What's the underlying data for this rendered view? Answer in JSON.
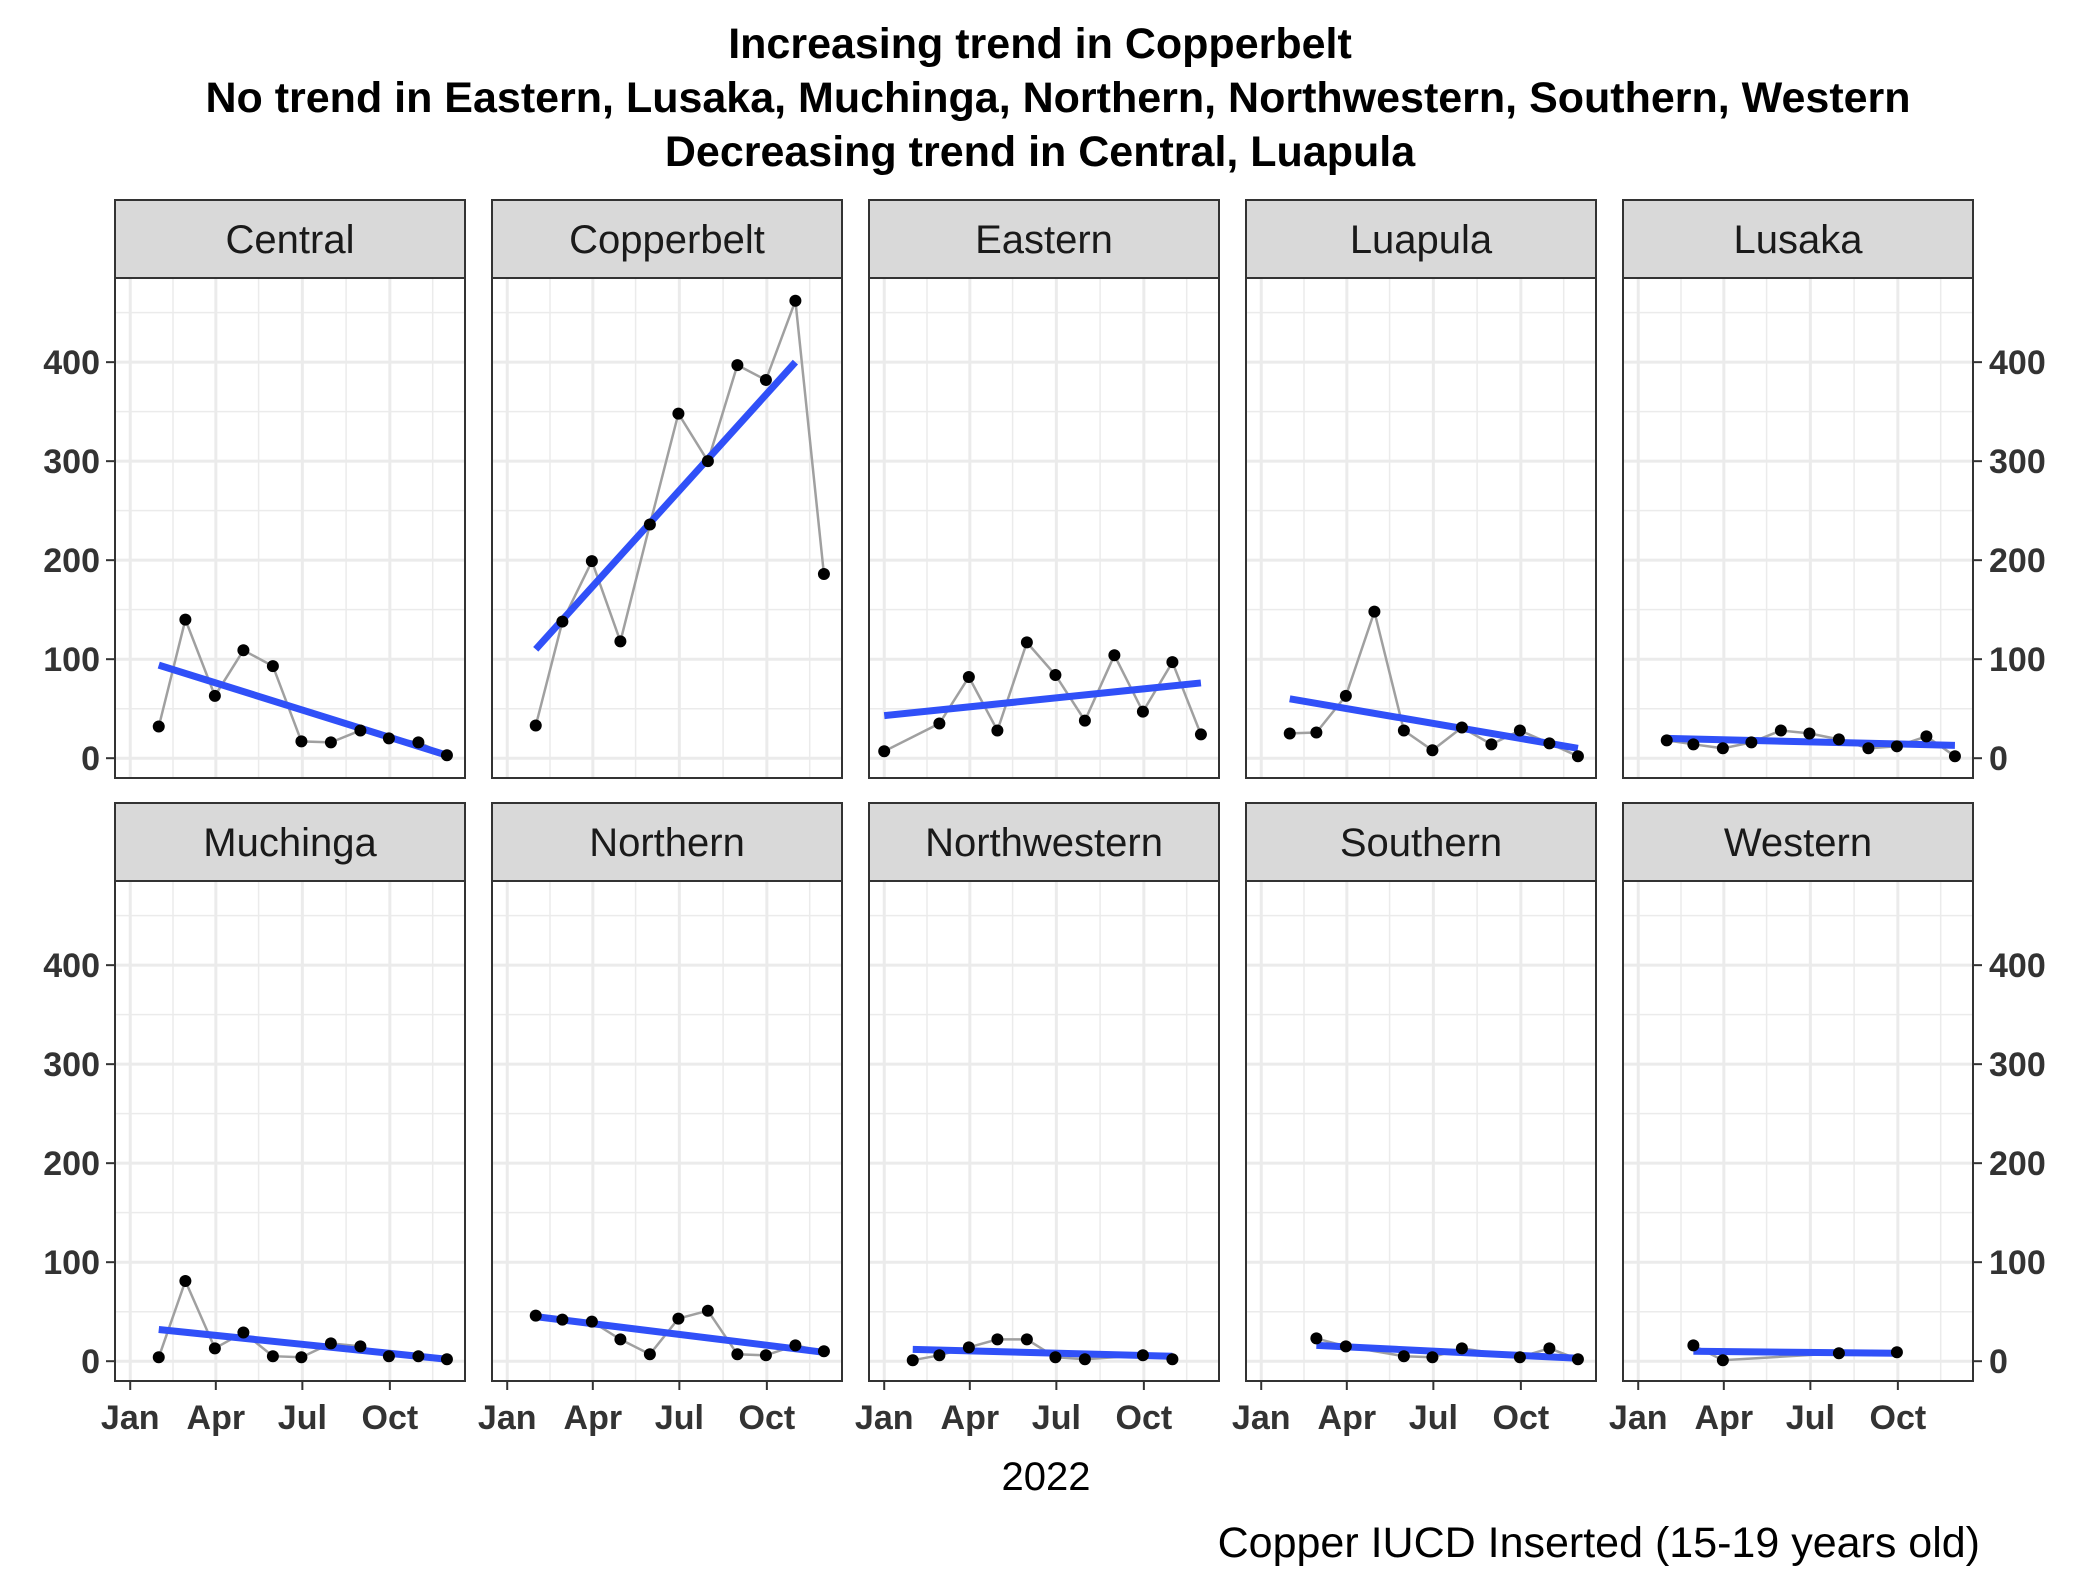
{
  "chart_data": {
    "type": "line",
    "title_lines": [
      "Increasing trend in Copperbelt",
      "No trend in Eastern, Lusaka, Muchinga, Northern, Northwestern, Southern, Western",
      "Decreasing trend in Central, Luapula"
    ],
    "xlabel": "2022",
    "ylabel": "",
    "caption": "Copper IUCD Inserted (15-19 years old)",
    "x_ticks": [
      {
        "label": "Jan",
        "value": "2022-01-01"
      },
      {
        "label": "Apr",
        "value": "2022-04-01"
      },
      {
        "label": "Jul",
        "value": "2022-07-01"
      },
      {
        "label": "Oct",
        "value": "2022-10-01"
      }
    ],
    "y_ticks": [
      0,
      100,
      200,
      300,
      400
    ],
    "ylim": [
      -20,
      485
    ],
    "xlim": [
      "2021-12-16",
      "2022-12-19"
    ],
    "grid": true,
    "colors": {
      "trend": "#3050f8",
      "series_line": "#a0a0a0",
      "points": "#000000",
      "strip": "#d9d9d9",
      "grid": "#ebebeb"
    },
    "panels": [
      {
        "name": "Central",
        "points": [
          [
            "2022-01-31",
            32
          ],
          [
            "2022-02-28",
            140
          ],
          [
            "2022-03-31",
            63
          ],
          [
            "2022-04-30",
            109
          ],
          [
            "2022-05-31",
            93
          ],
          [
            "2022-06-30",
            17
          ],
          [
            "2022-07-31",
            16
          ],
          [
            "2022-08-31",
            28
          ],
          [
            "2022-09-30",
            20
          ],
          [
            "2022-10-31",
            16
          ],
          [
            "2022-11-30",
            3
          ]
        ],
        "trend": [
          [
            "2022-01-31",
            94
          ],
          [
            "2022-11-30",
            3
          ]
        ]
      },
      {
        "name": "Copperbelt",
        "points": [
          [
            "2022-01-31",
            33
          ],
          [
            "2022-02-28",
            138
          ],
          [
            "2022-03-31",
            199
          ],
          [
            "2022-04-30",
            118
          ],
          [
            "2022-05-31",
            236
          ],
          [
            "2022-06-30",
            348
          ],
          [
            "2022-07-31",
            300
          ],
          [
            "2022-08-31",
            397
          ],
          [
            "2022-09-30",
            382
          ],
          [
            "2022-10-31",
            462
          ],
          [
            "2022-11-30",
            186
          ]
        ],
        "trend": [
          [
            "2022-01-31",
            110
          ],
          [
            "2022-10-31",
            400
          ]
        ]
      },
      {
        "name": "Eastern",
        "points": [
          [
            "2022-01-01",
            7
          ],
          [
            "2022-02-28",
            35
          ],
          [
            "2022-03-31",
            82
          ],
          [
            "2022-04-30",
            28
          ],
          [
            "2022-05-31",
            117
          ],
          [
            "2022-06-30",
            84
          ],
          [
            "2022-07-31",
            38
          ],
          [
            "2022-08-31",
            104
          ],
          [
            "2022-09-30",
            47
          ],
          [
            "2022-10-31",
            97
          ],
          [
            "2022-11-30",
            24
          ]
        ],
        "trend": [
          [
            "2022-01-01",
            43
          ],
          [
            "2022-11-30",
            76
          ]
        ]
      },
      {
        "name": "Luapula",
        "points": [
          [
            "2022-01-31",
            25
          ],
          [
            "2022-02-28",
            26
          ],
          [
            "2022-03-31",
            63
          ],
          [
            "2022-04-30",
            148
          ],
          [
            "2022-05-31",
            28
          ],
          [
            "2022-06-30",
            8
          ],
          [
            "2022-07-31",
            31
          ],
          [
            "2022-08-31",
            14
          ],
          [
            "2022-09-30",
            28
          ],
          [
            "2022-10-31",
            15
          ],
          [
            "2022-11-30",
            2
          ]
        ],
        "trend": [
          [
            "2022-01-31",
            60
          ],
          [
            "2022-11-30",
            10
          ]
        ]
      },
      {
        "name": "Lusaka",
        "points": [
          [
            "2022-01-31",
            18
          ],
          [
            "2022-02-28",
            14
          ],
          [
            "2022-03-31",
            10
          ],
          [
            "2022-04-30",
            16
          ],
          [
            "2022-05-31",
            28
          ],
          [
            "2022-06-30",
            25
          ],
          [
            "2022-07-31",
            19
          ],
          [
            "2022-08-31",
            10
          ],
          [
            "2022-09-30",
            12
          ],
          [
            "2022-10-31",
            22
          ],
          [
            "2022-11-30",
            2
          ]
        ],
        "trend": [
          [
            "2022-01-31",
            20
          ],
          [
            "2022-11-30",
            13
          ]
        ]
      },
      {
        "name": "Muchinga",
        "points": [
          [
            "2022-01-31",
            4
          ],
          [
            "2022-02-28",
            81
          ],
          [
            "2022-03-31",
            13
          ],
          [
            "2022-04-30",
            29
          ],
          [
            "2022-05-31",
            5
          ],
          [
            "2022-06-30",
            4
          ],
          [
            "2022-07-31",
            18
          ],
          [
            "2022-08-31",
            15
          ],
          [
            "2022-09-30",
            5
          ],
          [
            "2022-10-31",
            5
          ],
          [
            "2022-11-30",
            2
          ]
        ],
        "trend": [
          [
            "2022-01-31",
            32
          ],
          [
            "2022-11-30",
            2
          ]
        ]
      },
      {
        "name": "Northern",
        "points": [
          [
            "2022-01-31",
            46
          ],
          [
            "2022-02-28",
            42
          ],
          [
            "2022-03-31",
            40
          ],
          [
            "2022-04-30",
            22
          ],
          [
            "2022-05-31",
            7
          ],
          [
            "2022-06-30",
            43
          ],
          [
            "2022-07-31",
            51
          ],
          [
            "2022-08-31",
            7
          ],
          [
            "2022-09-30",
            6
          ],
          [
            "2022-10-31",
            16
          ],
          [
            "2022-11-30",
            10
          ]
        ],
        "trend": [
          [
            "2022-01-31",
            45
          ],
          [
            "2022-11-30",
            9
          ]
        ]
      },
      {
        "name": "Northwestern",
        "points": [
          [
            "2022-01-31",
            1
          ],
          [
            "2022-02-28",
            6
          ],
          [
            "2022-03-31",
            14
          ],
          [
            "2022-04-30",
            22
          ],
          [
            "2022-05-31",
            22
          ],
          [
            "2022-06-30",
            4
          ],
          [
            "2022-07-31",
            2
          ],
          [
            "2022-09-30",
            6
          ],
          [
            "2022-10-31",
            2
          ]
        ],
        "trend": [
          [
            "2022-01-31",
            12
          ],
          [
            "2022-10-31",
            5
          ]
        ]
      },
      {
        "name": "Southern",
        "points": [
          [
            "2022-02-28",
            23
          ],
          [
            "2022-03-31",
            15
          ],
          [
            "2022-05-31",
            5
          ],
          [
            "2022-06-30",
            4
          ],
          [
            "2022-07-31",
            13
          ],
          [
            "2022-09-30",
            4
          ],
          [
            "2022-10-31",
            13
          ],
          [
            "2022-11-30",
            2
          ]
        ],
        "trend": [
          [
            "2022-02-28",
            16
          ],
          [
            "2022-11-30",
            3
          ]
        ]
      },
      {
        "name": "Western",
        "points": [
          [
            "2022-02-28",
            16
          ],
          [
            "2022-03-31",
            1
          ],
          [
            "2022-07-31",
            8
          ],
          [
            "2022-09-30",
            9
          ]
        ],
        "trend": [
          [
            "2022-02-28",
            10
          ],
          [
            "2022-09-30",
            8
          ]
        ]
      }
    ]
  }
}
